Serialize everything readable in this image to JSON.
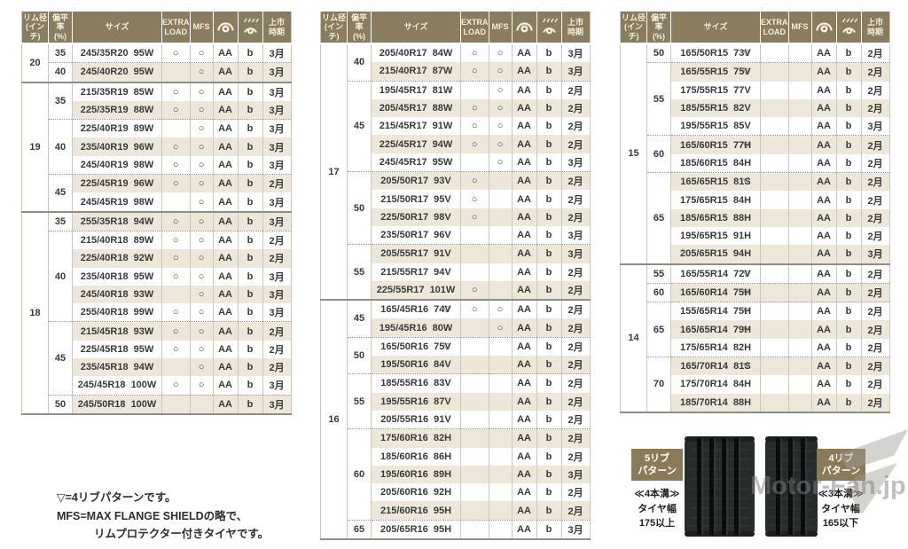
{
  "header": {
    "rim": [
      "リム径",
      "(インチ)"
    ],
    "aspect": [
      "偏平率",
      "(%)"
    ],
    "size": "サイズ",
    "extra": [
      "EXTRA",
      "LOAD"
    ],
    "mfs": "MFS",
    "fuel_icon": "rolling-resistance-icon",
    "wet_icon": "wet-grip-icon",
    "launch": [
      "上市",
      "時期"
    ]
  },
  "tables": [
    [
      {
        "rim": "20",
        "subs": [
          {
            "aspect": "35",
            "rows": [
              [
                "245/35R20 95W",
                "",
                "○",
                "○",
                "AA",
                "b",
                "3月"
              ]
            ]
          },
          {
            "aspect": "40",
            "rows": [
              [
                "245/40R20 95W",
                "",
                "",
                "○",
                "AA",
                "b",
                "3月"
              ]
            ]
          }
        ]
      },
      {
        "rim": "19",
        "subs": [
          {
            "aspect": "35",
            "rows": [
              [
                "215/35R19 85W",
                "",
                "○",
                "○",
                "AA",
                "b",
                "3月"
              ],
              [
                "225/35R19 88W",
                "",
                "○",
                "○",
                "AA",
                "b",
                "3月"
              ]
            ]
          },
          {
            "aspect": "40",
            "rows": [
              [
                "225/40R19 89W",
                "",
                "",
                "○",
                "AA",
                "b",
                "3月"
              ],
              [
                "235/40R19 96W",
                "",
                "○",
                "○",
                "AA",
                "b",
                "3月"
              ],
              [
                "245/40R19 98W",
                "",
                "○",
                "○",
                "AA",
                "b",
                "3月"
              ]
            ]
          },
          {
            "aspect": "45",
            "rows": [
              [
                "225/45R19 96W",
                "",
                "○",
                "○",
                "AA",
                "b",
                "2月"
              ],
              [
                "245/45R19 98W",
                "",
                "",
                "○",
                "AA",
                "b",
                "3月"
              ]
            ]
          }
        ]
      },
      {
        "rim": "18",
        "subs": [
          {
            "aspect": "35",
            "rows": [
              [
                "255/35R18 94W",
                "",
                "○",
                "○",
                "AA",
                "b",
                "3月"
              ]
            ]
          },
          {
            "aspect": "40",
            "rows": [
              [
                "215/40R18 89W",
                "",
                "○",
                "○",
                "AA",
                "b",
                "2月"
              ],
              [
                "225/40R18 92W",
                "",
                "○",
                "○",
                "AA",
                "b",
                "2月"
              ],
              [
                "235/40R18 95W",
                "",
                "○",
                "○",
                "AA",
                "b",
                "3月"
              ],
              [
                "245/40R18 93W",
                "",
                "",
                "○",
                "AA",
                "b",
                "3月"
              ],
              [
                "255/40R18 99W",
                "",
                "○",
                "○",
                "AA",
                "b",
                "3月"
              ]
            ]
          },
          {
            "aspect": "45",
            "rows": [
              [
                "215/45R18 93W",
                "",
                "○",
                "○",
                "AA",
                "b",
                "2月"
              ],
              [
                "225/45R18 95W",
                "",
                "○",
                "○",
                "AA",
                "b",
                "2月"
              ],
              [
                "235/45R18 94W",
                "",
                "",
                "○",
                "AA",
                "b",
                "2月"
              ],
              [
                "245/45R18 100W",
                "",
                "○",
                "○",
                "AA",
                "b",
                "3月"
              ]
            ]
          },
          {
            "aspect": "50",
            "rows": [
              [
                "245/50R18 100W",
                "",
                "",
                "",
                "AA",
                "b",
                "3月"
              ]
            ]
          }
        ]
      }
    ],
    [
      {
        "rim": "17",
        "subs": [
          {
            "aspect": "40",
            "rows": [
              [
                "205/40R17 84W",
                "",
                "○",
                "○",
                "AA",
                "b",
                "3月"
              ],
              [
                "215/40R17 87W",
                "",
                "○",
                "○",
                "AA",
                "b",
                "3月"
              ]
            ]
          },
          {
            "aspect": "45",
            "rows": [
              [
                "195/45R17 81W",
                "",
                "",
                "○",
                "AA",
                "b",
                "2月"
              ],
              [
                "205/45R17 88W",
                "",
                "○",
                "○",
                "AA",
                "b",
                "2月"
              ],
              [
                "215/45R17 91W",
                "",
                "○",
                "○",
                "AA",
                "b",
                "2月"
              ],
              [
                "225/45R17 94W",
                "",
                "○",
                "○",
                "AA",
                "b",
                "2月"
              ],
              [
                "245/45R17 95W",
                "",
                "",
                "○",
                "AA",
                "b",
                "3月"
              ]
            ]
          },
          {
            "aspect": "50",
            "rows": [
              [
                "205/50R17 93V",
                "",
                "○",
                "",
                "AA",
                "b",
                "2月"
              ],
              [
                "215/50R17 95V",
                "",
                "○",
                "",
                "AA",
                "b",
                "2月"
              ],
              [
                "225/50R17 98V",
                "",
                "○",
                "",
                "AA",
                "b",
                "2月"
              ],
              [
                "235/50R17 96V",
                "",
                "",
                "",
                "AA",
                "b",
                "3月"
              ]
            ]
          },
          {
            "aspect": "55",
            "rows": [
              [
                "205/55R17 91V",
                "",
                "",
                "",
                "AA",
                "b",
                "3月"
              ],
              [
                "215/55R17 94V",
                "",
                "",
                "",
                "AA",
                "b",
                "2月"
              ],
              [
                "225/55R17 101W",
                "",
                "○",
                "",
                "AA",
                "b",
                "2月"
              ]
            ]
          }
        ]
      },
      {
        "rim": "16",
        "subs": [
          {
            "aspect": "45",
            "rows": [
              [
                "165/45R16 74V",
                "▽",
                "○",
                "○",
                "AA",
                "b",
                "2月"
              ],
              [
                "195/45R16 80W",
                "",
                "",
                "○",
                "AA",
                "b",
                "2月"
              ]
            ]
          },
          {
            "aspect": "50",
            "rows": [
              [
                "165/50R16 75V",
                "▽",
                "",
                "",
                "AA",
                "b",
                "2月"
              ],
              [
                "195/50R16 84V",
                "",
                "",
                "",
                "AA",
                "b",
                "2月"
              ]
            ]
          },
          {
            "aspect": "55",
            "rows": [
              [
                "185/55R16 83V",
                "",
                "",
                "",
                "AA",
                "b",
                "2月"
              ],
              [
                "195/55R16 87V",
                "",
                "",
                "",
                "AA",
                "b",
                "2月"
              ],
              [
                "205/55R16 91V",
                "",
                "",
                "",
                "AA",
                "b",
                "2月"
              ]
            ]
          },
          {
            "aspect": "60",
            "rows": [
              [
                "175/60R16 82H",
                "",
                "",
                "",
                "AA",
                "b",
                "2月"
              ],
              [
                "185/60R16 86H",
                "",
                "",
                "",
                "AA",
                "b",
                "2月"
              ],
              [
                "195/60R16 89H",
                "",
                "",
                "",
                "AA",
                "b",
                "3月"
              ],
              [
                "205/60R16 92H",
                "",
                "",
                "",
                "AA",
                "b",
                "2月"
              ],
              [
                "215/60R16 95H",
                "",
                "",
                "",
                "AA",
                "b",
                "2月"
              ]
            ]
          },
          {
            "aspect": "65",
            "rows": [
              [
                "205/65R16 95H",
                "",
                "",
                "",
                "AA",
                "b",
                "3月"
              ]
            ]
          }
        ]
      }
    ],
    [
      {
        "rim": "15",
        "subs": [
          {
            "aspect": "50",
            "rows": [
              [
                "165/50R15 73V",
                "▽",
                "",
                "",
                "AA",
                "b",
                "2月"
              ]
            ]
          },
          {
            "aspect": "55",
            "rows": [
              [
                "165/55R15 75V",
                "▽",
                "",
                "",
                "AA",
                "b",
                "2月"
              ],
              [
                "175/55R15 77V",
                "",
                "",
                "",
                "AA",
                "b",
                "2月"
              ],
              [
                "185/55R15 82V",
                "",
                "",
                "",
                "AA",
                "b",
                "2月"
              ],
              [
                "195/55R15 85V",
                "",
                "",
                "",
                "AA",
                "b",
                "3月"
              ]
            ]
          },
          {
            "aspect": "60",
            "rows": [
              [
                "165/60R15 77H",
                "▽",
                "",
                "",
                "AA",
                "b",
                "2月"
              ],
              [
                "185/60R15 84H",
                "",
                "",
                "",
                "AA",
                "b",
                "2月"
              ]
            ]
          },
          {
            "aspect": "65",
            "rows": [
              [
                "165/65R15 81S",
                "▽",
                "",
                "",
                "AA",
                "b",
                "2月"
              ],
              [
                "175/65R15 84H",
                "",
                "",
                "",
                "AA",
                "b",
                "2月"
              ],
              [
                "185/65R15 88H",
                "",
                "",
                "",
                "AA",
                "b",
                "2月"
              ],
              [
                "195/65R15 91H",
                "",
                "",
                "",
                "AA",
                "b",
                "2月"
              ],
              [
                "205/65R15 94H",
                "",
                "",
                "",
                "AA",
                "b",
                "3月"
              ]
            ]
          }
        ]
      },
      {
        "rim": "14",
        "subs": [
          {
            "aspect": "55",
            "rows": [
              [
                "165/55R14 72V",
                "▽",
                "",
                "",
                "AA",
                "b",
                "2月"
              ]
            ]
          },
          {
            "aspect": "60",
            "rows": [
              [
                "165/60R14 75H",
                "▽",
                "",
                "",
                "AA",
                "b",
                "2月"
              ]
            ]
          },
          {
            "aspect": "65",
            "rows": [
              [
                "155/65R14 75H",
                "▽",
                "",
                "",
                "AA",
                "b",
                "2月"
              ],
              [
                "165/65R14 79H",
                "▽",
                "",
                "",
                "AA",
                "b",
                "2月"
              ],
              [
                "175/65R14 82H",
                "",
                "",
                "",
                "AA",
                "b",
                "2月"
              ]
            ]
          },
          {
            "aspect": "70",
            "rows": [
              [
                "165/70R14 81S",
                "▽",
                "",
                "",
                "AA",
                "b",
                "2月"
              ],
              [
                "175/70R14 84H",
                "",
                "",
                "",
                "AA",
                "b",
                "2月"
              ],
              [
                "185/70R14 88H",
                "",
                "",
                "",
                "AA",
                "b",
                "2月"
              ]
            ]
          }
        ]
      }
    ]
  ],
  "footnote": {
    "line1": "▽=4リブパターンです。",
    "line2": "MFS=MAX FLANGE SHIELDの略で、",
    "line3": "リムプロテクター付きタイヤです。"
  },
  "figures": {
    "left": {
      "badge": [
        "5リブ",
        "パターン"
      ],
      "caption": [
        "≪4本溝≫",
        "タイヤ幅",
        "175以上"
      ]
    },
    "right": {
      "badge": [
        "4リブ",
        "パターン"
      ],
      "caption": [
        "≪3本溝≫",
        "タイヤ幅",
        "165以下"
      ]
    }
  },
  "watermark": "Motor-Fan.jp",
  "colors": {
    "header_bg": "#8a7c5f",
    "row_alt": "#ece7d8",
    "badge_bg": "#8a7a57",
    "separator": "#8e8d86"
  }
}
